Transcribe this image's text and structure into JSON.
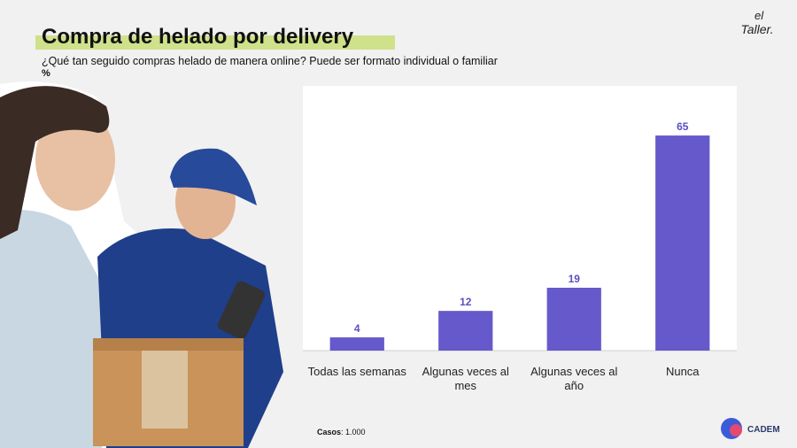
{
  "header": {
    "title": "Compra de helado por delivery",
    "subtitle": "¿Qué tan seguido compras helado de manera online? Puede ser formato individual o familiar",
    "unit": "%"
  },
  "chart_data": {
    "type": "bar",
    "categories": [
      "Todas las semanas",
      "Algunas veces al mes",
      "Algunas veces al año",
      "Nunca"
    ],
    "values": [
      4,
      12,
      19,
      65
    ],
    "color": "#6659cb",
    "ylim": [
      0,
      80
    ]
  },
  "footnote": {
    "label": "Casos",
    "text": ": 1.000"
  },
  "logos": {
    "top_small": "el",
    "top_main": "Taller.",
    "bottom": "CADEM"
  }
}
